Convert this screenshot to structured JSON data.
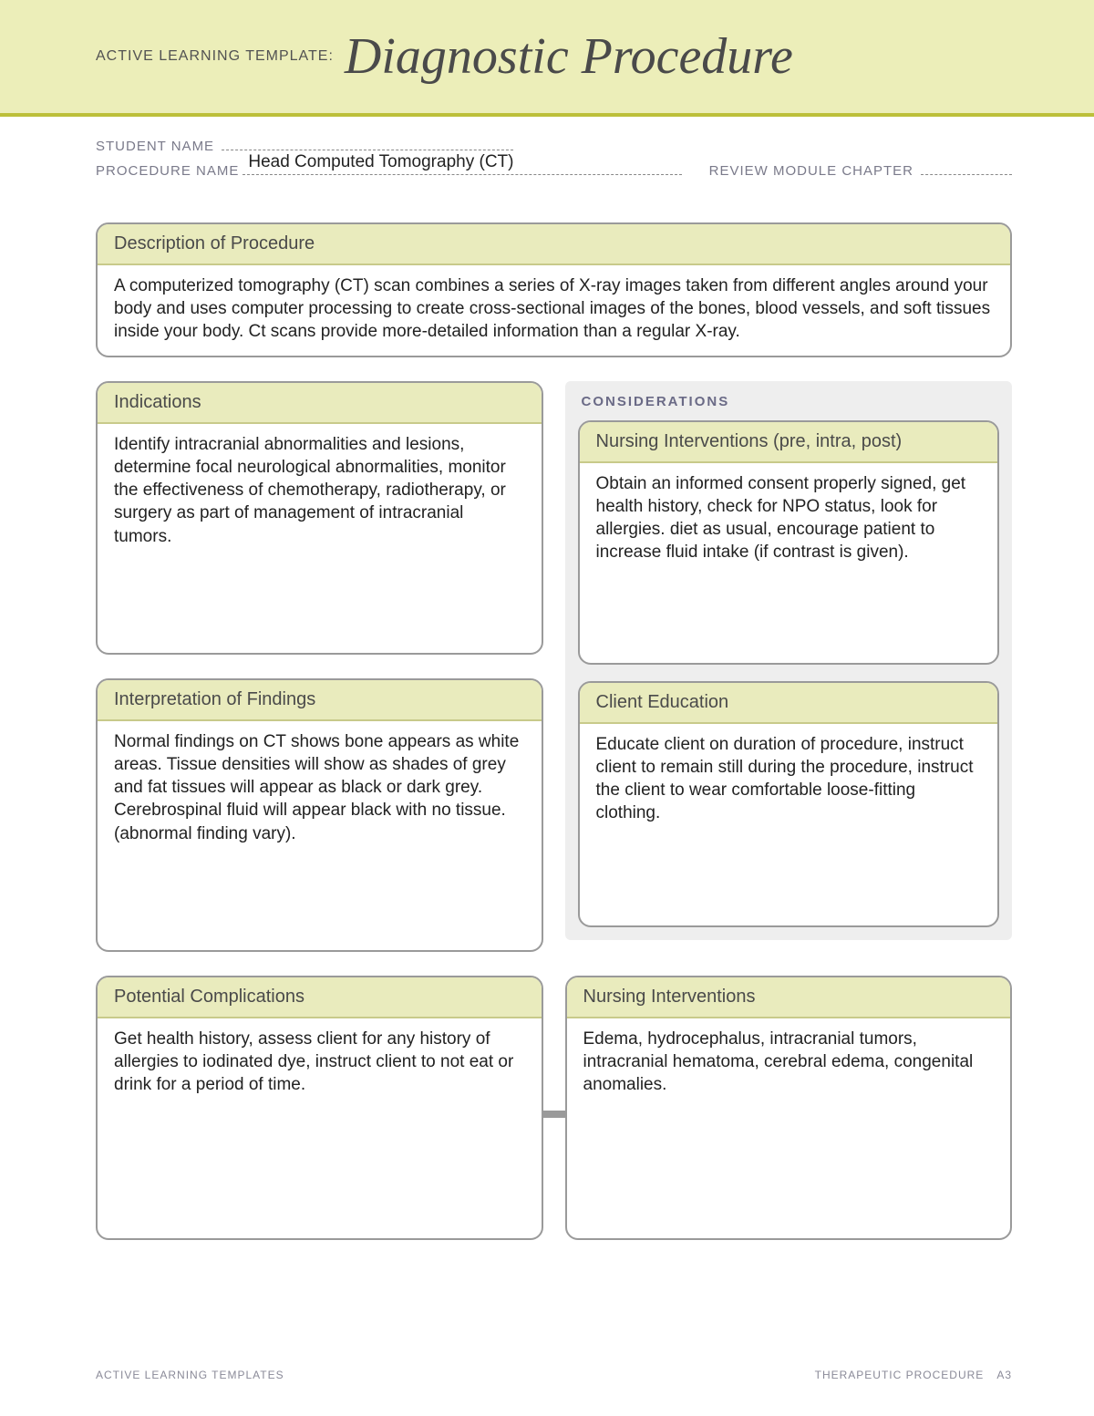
{
  "header": {
    "prefix": "ACTIVE LEARNING TEMPLATE:",
    "title": "Diagnostic Procedure"
  },
  "fields": {
    "student_name_label": "STUDENT NAME",
    "procedure_name_label": "PROCEDURE NAME",
    "procedure_name_value": "Head Computed Tomography (CT)",
    "review_chapter_label": "REVIEW MODULE CHAPTER"
  },
  "boxes": {
    "description": {
      "title": "Description of Procedure",
      "body": "A computerized tomography (CT) scan combines a series of X-ray images taken from different angles around your body and uses computer processing to create cross-sectional images of the bones, blood vessels, and soft tissues inside your body. Ct scans provide more-detailed information than a regular X-ray."
    },
    "indications": {
      "title": "Indications",
      "body": "Identify intracranial abnormalities and lesions, determine focal neurological abnormalities, monitor the effectiveness of chemotherapy, radiotherapy, or surgery as part of management of intracranial tumors."
    },
    "interpretation": {
      "title": "Interpretation of Findings",
      "body": "Normal findings on CT shows bone appears as white areas. Tissue densities will show as shades of grey and fat tissues will appear as black or dark grey. Cerebrospinal fluid will appear black with no tissue.\n(abnormal finding vary)."
    },
    "considerations_label": "CONSIDERATIONS",
    "nursing_pre": {
      "title": "Nursing Interventions (pre, intra, post)",
      "body": "Obtain an informed consent properly signed, get health history, check for NPO status, look for allergies.  diet as usual, encourage patient to increase fluid intake (if contrast is given)."
    },
    "client_education": {
      "title": "Client Education",
      "body": "Educate client on duration of procedure, instruct client to remain still during the procedure, instruct the client to wear comfortable loose-fitting clothing."
    },
    "potential_complications": {
      "title": "Potential Complications",
      "body": "Get health history, assess client for any history of allergies to iodinated dye, instruct client to not eat or drink for a period of time."
    },
    "nursing_interventions": {
      "title": "Nursing Interventions",
      "body": "Edema, hydrocephalus, intracranial tumors, intracranial hematoma, cerebral edema, congenital anomalies."
    }
  },
  "footer": {
    "left": "ACTIVE LEARNING TEMPLATES",
    "right_label": "THERAPEUTIC PROCEDURE",
    "right_page": "A3"
  },
  "colors": {
    "header_bg": "#eceeb9",
    "accent_rule": "#bcbf3a",
    "box_header_bg": "#e9ebbd",
    "box_border": "#9a9a9a",
    "considerations_bg": "#eeeeee",
    "text_muted": "#7a7a8a"
  }
}
